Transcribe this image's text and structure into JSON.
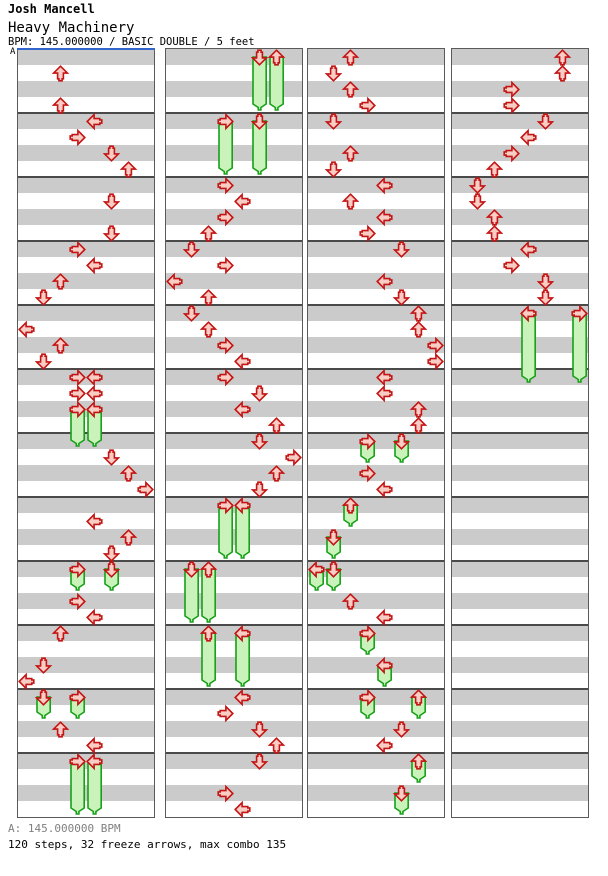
{
  "header": {
    "artist": "Josh Mancell",
    "title": "Heavy Machinery",
    "meta": "BPM: 145.000000 / BASIC DOUBLE / 5 feet"
  },
  "section_marker": {
    "label": "A"
  },
  "footer": {
    "bpm_line": "A: 145.000000 BPM",
    "stats_line": "120 steps, 32 freeze arrows, max combo 135"
  },
  "colors": {
    "marker_blue": "#3366cc",
    "arrow_border_red": "#c41414",
    "arrow_fill_pink": "#f8cdc5",
    "freeze_border_green": "#18a018",
    "freeze_fill_green": "#c9f3bb",
    "stripe_gray": "#cbcbcb",
    "grid_line": "#4a4a4a",
    "footer_gray": "#808080"
  },
  "chart": {
    "mode": "double",
    "columns": [
      "left",
      "down",
      "up",
      "right",
      "left",
      "down",
      "up",
      "right"
    ],
    "measures_per_panel": 12,
    "rows_per_measure": 4,
    "panels": [
      {
        "taps": [
          [
            1,
            2
          ],
          [
            3,
            2
          ],
          [
            4,
            4
          ],
          [
            5,
            3
          ],
          [
            6,
            5
          ],
          [
            7,
            6
          ],
          [
            9,
            5
          ],
          [
            11,
            5
          ],
          [
            12,
            3
          ],
          [
            13,
            4
          ],
          [
            14,
            2
          ],
          [
            15,
            1
          ],
          [
            17,
            0
          ],
          [
            18,
            2
          ],
          [
            19,
            1
          ],
          [
            20,
            3
          ],
          [
            20,
            4
          ],
          [
            21,
            3
          ],
          [
            21,
            4
          ],
          [
            25,
            5
          ],
          [
            26,
            6
          ],
          [
            27,
            7
          ],
          [
            29,
            4
          ],
          [
            30,
            6
          ],
          [
            31,
            5
          ],
          [
            34,
            3
          ],
          [
            35,
            4
          ],
          [
            36,
            2
          ],
          [
            38,
            1
          ],
          [
            39,
            0
          ],
          [
            42,
            2
          ],
          [
            43,
            4
          ]
        ],
        "freezes": [
          [
            22,
            3,
            3
          ],
          [
            22,
            4,
            3
          ],
          [
            32,
            3,
            2
          ],
          [
            32,
            5,
            2
          ],
          [
            40,
            1,
            2
          ],
          [
            40,
            3,
            2
          ],
          [
            44,
            3,
            4
          ],
          [
            44,
            4,
            4
          ]
        ]
      },
      {
        "taps": [
          [
            8,
            3
          ],
          [
            9,
            4
          ],
          [
            10,
            3
          ],
          [
            11,
            2
          ],
          [
            12,
            1
          ],
          [
            13,
            3
          ],
          [
            14,
            0
          ],
          [
            15,
            2
          ],
          [
            16,
            1
          ],
          [
            17,
            2
          ],
          [
            18,
            3
          ],
          [
            19,
            4
          ],
          [
            20,
            3
          ],
          [
            21,
            5
          ],
          [
            22,
            4
          ],
          [
            23,
            6
          ],
          [
            24,
            5
          ],
          [
            25,
            7
          ],
          [
            26,
            6
          ],
          [
            27,
            5
          ],
          [
            40,
            4
          ],
          [
            41,
            3
          ],
          [
            42,
            5
          ],
          [
            43,
            6
          ],
          [
            44,
            5
          ],
          [
            46,
            3
          ],
          [
            47,
            4
          ]
        ],
        "freezes": [
          [
            0,
            5,
            4
          ],
          [
            0,
            6,
            4
          ],
          [
            4,
            3,
            4
          ],
          [
            4,
            5,
            4
          ],
          [
            28,
            3,
            4
          ],
          [
            28,
            4,
            4
          ],
          [
            32,
            1,
            4
          ],
          [
            32,
            2,
            4
          ],
          [
            36,
            2,
            4
          ],
          [
            36,
            4,
            4
          ]
        ]
      },
      {
        "taps": [
          [
            0,
            2
          ],
          [
            1,
            1
          ],
          [
            2,
            2
          ],
          [
            3,
            3
          ],
          [
            4,
            1
          ],
          [
            6,
            2
          ],
          [
            7,
            1
          ],
          [
            8,
            4
          ],
          [
            9,
            2
          ],
          [
            10,
            4
          ],
          [
            11,
            3
          ],
          [
            12,
            5
          ],
          [
            14,
            4
          ],
          [
            15,
            5
          ],
          [
            16,
            6
          ],
          [
            17,
            6
          ],
          [
            18,
            7
          ],
          [
            19,
            7
          ],
          [
            20,
            4
          ],
          [
            21,
            4
          ],
          [
            22,
            6
          ],
          [
            23,
            6
          ],
          [
            26,
            3
          ],
          [
            27,
            4
          ],
          [
            34,
            2
          ],
          [
            35,
            4
          ],
          [
            42,
            5
          ],
          [
            43,
            4
          ]
        ],
        "freezes": [
          [
            24,
            3,
            2
          ],
          [
            24,
            5,
            2
          ],
          [
            28,
            2,
            2
          ],
          [
            30,
            1,
            2
          ],
          [
            32,
            0,
            2
          ],
          [
            32,
            1,
            2
          ],
          [
            36,
            3,
            2
          ],
          [
            38,
            4,
            2
          ],
          [
            40,
            3,
            2
          ],
          [
            40,
            6,
            2
          ],
          [
            44,
            6,
            2
          ],
          [
            46,
            5,
            2
          ]
        ]
      },
      {
        "taps": [
          [
            0,
            6
          ],
          [
            1,
            6
          ],
          [
            2,
            3
          ],
          [
            3,
            3
          ],
          [
            4,
            5
          ],
          [
            5,
            4
          ],
          [
            6,
            3
          ],
          [
            7,
            2
          ],
          [
            8,
            1
          ],
          [
            9,
            1
          ],
          [
            10,
            2
          ],
          [
            11,
            2
          ],
          [
            12,
            4
          ],
          [
            13,
            3
          ],
          [
            14,
            5
          ],
          [
            15,
            5
          ]
        ],
        "freezes": [
          [
            16,
            4,
            5
          ],
          [
            16,
            7,
            5
          ]
        ]
      }
    ]
  }
}
